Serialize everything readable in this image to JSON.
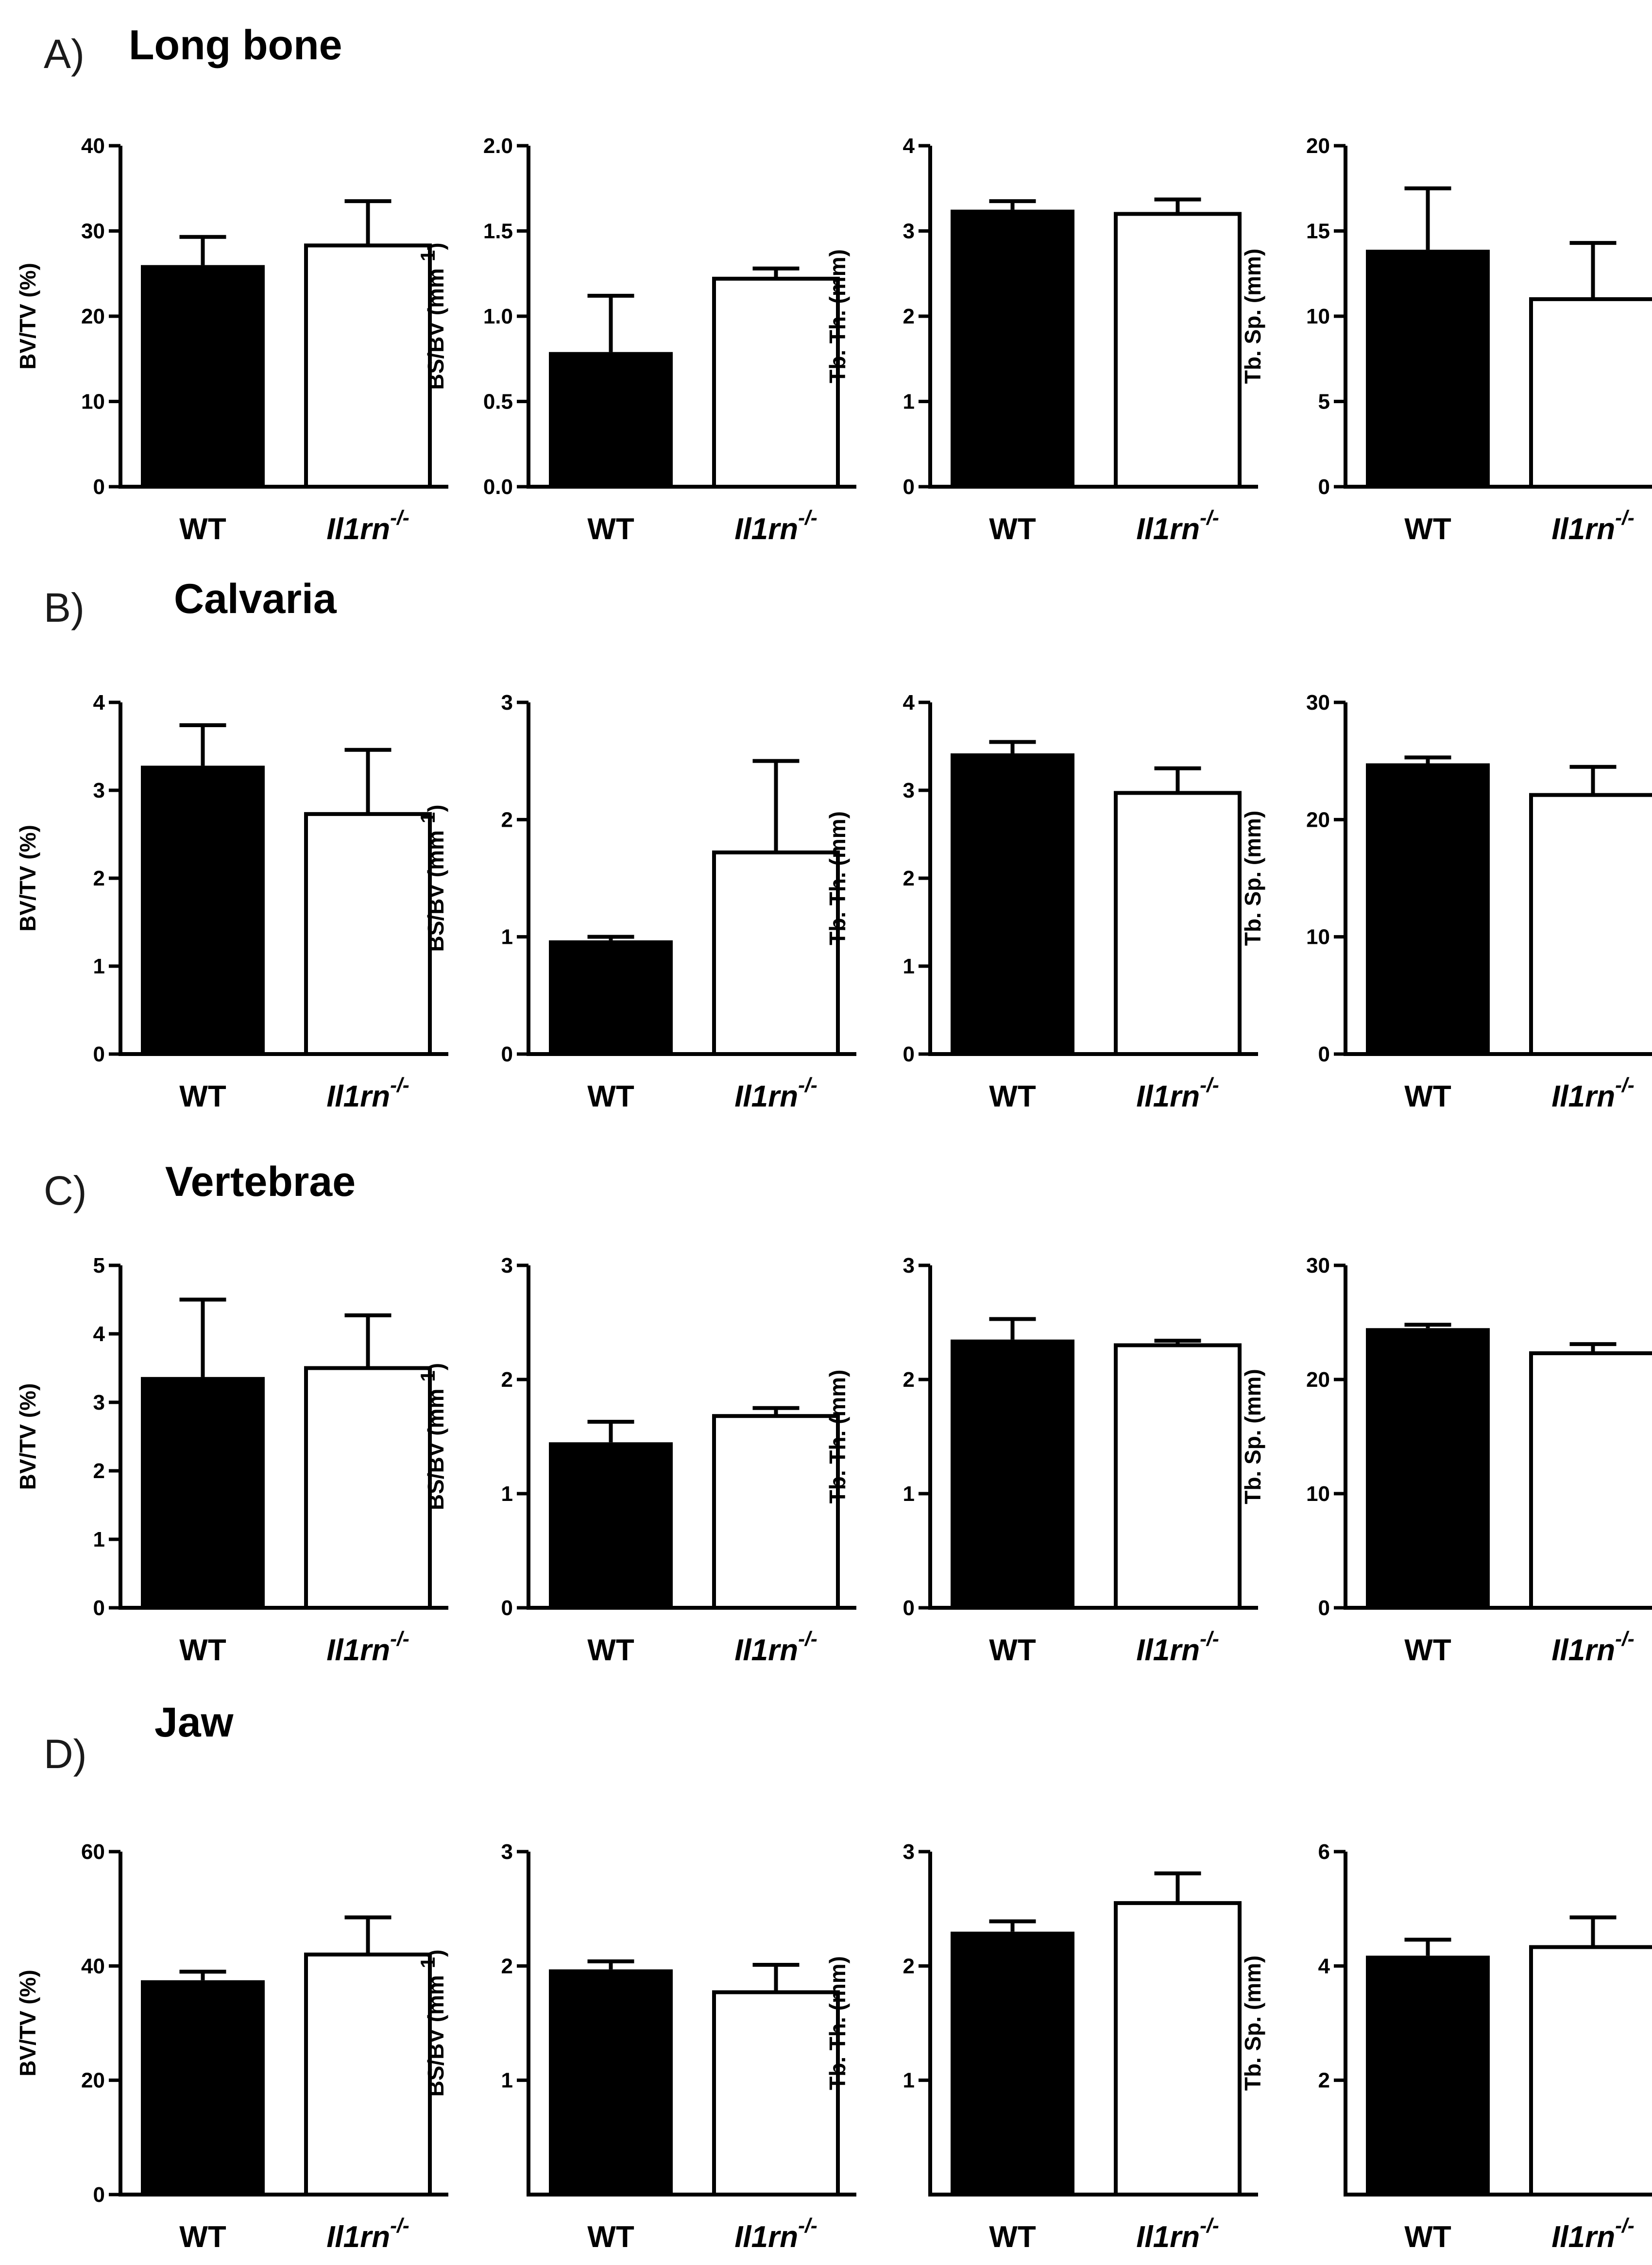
{
  "chart_data": [
    {
      "section": "A",
      "type": "bar",
      "ylabel": "BV/TV (%)",
      "ylabel_sup": "",
      "ylabel_suffix": "",
      "ylim": [
        0,
        40
      ],
      "yticks": [
        "0",
        "10",
        "20",
        "30",
        "40"
      ],
      "categories": [
        "WT",
        "Il1rn"
      ],
      "category_sup": [
        "",
        "-/-"
      ],
      "values": [
        26,
        28.3
      ],
      "errors": [
        3.3,
        5.2
      ]
    },
    {
      "section": "A",
      "type": "bar",
      "ylabel": "BS/BV (mm",
      "ylabel_sup": "-1",
      "ylabel_suffix": ")",
      "ylim": [
        0,
        2.0
      ],
      "yticks": [
        "0.0",
        "0.5",
        "1.0",
        "1.5",
        "2.0"
      ],
      "categories": [
        "WT",
        "Il1rn"
      ],
      "category_sup": [
        "",
        "-/-"
      ],
      "values": [
        0.79,
        1.22
      ],
      "errors": [
        0.33,
        0.06
      ]
    },
    {
      "section": "A",
      "type": "bar",
      "ylabel": "Tb. Th. (mm)",
      "ylabel_sup": "",
      "ylabel_suffix": "",
      "ylim": [
        0,
        4
      ],
      "yticks": [
        "0",
        "1",
        "2",
        "3",
        "4"
      ],
      "categories": [
        "WT",
        "Il1rn"
      ],
      "category_sup": [
        "",
        "-/-"
      ],
      "values": [
        3.25,
        3.2
      ],
      "errors": [
        0.1,
        0.17
      ]
    },
    {
      "section": "A",
      "type": "bar",
      "ylabel": "Tb. Sp. (mm)",
      "ylabel_sup": "",
      "ylabel_suffix": "",
      "ylim": [
        0,
        20
      ],
      "yticks": [
        "0",
        "5",
        "10",
        "15",
        "20"
      ],
      "categories": [
        "WT",
        "Il1rn"
      ],
      "category_sup": [
        "",
        "-/-"
      ],
      "values": [
        13.9,
        11
      ],
      "errors": [
        3.6,
        3.3
      ]
    },
    {
      "section": "B",
      "type": "bar",
      "ylabel": "BV/TV (%)",
      "ylabel_sup": "",
      "ylabel_suffix": "",
      "ylim": [
        0,
        4
      ],
      "yticks": [
        "0",
        "1",
        "2",
        "3",
        "4"
      ],
      "categories": [
        "WT",
        "Il1rn"
      ],
      "category_sup": [
        "",
        "-/-"
      ],
      "values": [
        3.28,
        2.73
      ],
      "errors": [
        0.46,
        0.73
      ]
    },
    {
      "section": "B",
      "type": "bar",
      "ylabel": "BS/BV (mm",
      "ylabel_sup": "-1",
      "ylabel_suffix": ")",
      "ylim": [
        0,
        3
      ],
      "yticks": [
        "0",
        "1",
        "2",
        "3"
      ],
      "categories": [
        "WT",
        "Il1rn"
      ],
      "category_sup": [
        "",
        "-/-"
      ],
      "values": [
        0.97,
        1.72
      ],
      "errors": [
        0.03,
        0.78
      ]
    },
    {
      "section": "B",
      "type": "bar",
      "ylabel": "Tb. Th. (mm)",
      "ylabel_sup": "",
      "ylabel_suffix": "",
      "ylim": [
        0,
        4
      ],
      "yticks": [
        "0",
        "1",
        "2",
        "3",
        "4"
      ],
      "categories": [
        "WT",
        "Il1rn"
      ],
      "category_sup": [
        "",
        "-/-"
      ],
      "values": [
        3.42,
        2.97
      ],
      "errors": [
        0.13,
        0.28
      ]
    },
    {
      "section": "B",
      "type": "bar",
      "ylabel": "Tb. Sp. (mm)",
      "ylabel_sup": "",
      "ylabel_suffix": "",
      "ylim": [
        0,
        30
      ],
      "yticks": [
        "0",
        "10",
        "20",
        "30"
      ],
      "categories": [
        "WT",
        "Il1rn"
      ],
      "category_sup": [
        "",
        "-/-"
      ],
      "values": [
        24.8,
        22.1
      ],
      "errors": [
        0.5,
        2.4
      ]
    },
    {
      "section": "C",
      "type": "bar",
      "ylabel": "BV/TV (%)",
      "ylabel_sup": "",
      "ylabel_suffix": "",
      "ylim": [
        0,
        5
      ],
      "yticks": [
        "0",
        "1",
        "2",
        "3",
        "4",
        "5"
      ],
      "categories": [
        "WT",
        "Il1rn"
      ],
      "category_sup": [
        "",
        "-/-"
      ],
      "values": [
        3.37,
        3.5
      ],
      "errors": [
        1.13,
        0.77
      ]
    },
    {
      "section": "C",
      "type": "bar",
      "ylabel": "BS/BV (mm",
      "ylabel_sup": "-1",
      "ylabel_suffix": ")",
      "ylim": [
        0,
        3
      ],
      "yticks": [
        "0",
        "1",
        "2",
        "3"
      ],
      "categories": [
        "WT",
        "Il1rn"
      ],
      "category_sup": [
        "",
        "-/-"
      ],
      "values": [
        1.45,
        1.68
      ],
      "errors": [
        0.18,
        0.07
      ]
    },
    {
      "section": "C",
      "type": "bar",
      "ylabel": "Tb. Th. (mm)",
      "ylabel_sup": "",
      "ylabel_suffix": "",
      "ylim": [
        0,
        3
      ],
      "yticks": [
        "0",
        "1",
        "2",
        "3"
      ],
      "categories": [
        "WT",
        "Il1rn"
      ],
      "category_sup": [
        "",
        "-/-"
      ],
      "values": [
        2.35,
        2.3
      ],
      "errors": [
        0.18,
        0.04
      ]
    },
    {
      "section": "C",
      "type": "bar",
      "ylabel": "Tb. Sp. (mm)",
      "ylabel_sup": "",
      "ylabel_suffix": "",
      "ylim": [
        0,
        30
      ],
      "yticks": [
        "0",
        "10",
        "20",
        "30"
      ],
      "categories": [
        "WT",
        "Il1rn"
      ],
      "category_sup": [
        "",
        "-/-"
      ],
      "values": [
        24.5,
        22.3
      ],
      "errors": [
        0.3,
        0.8
      ]
    },
    {
      "section": "D",
      "type": "bar",
      "ylabel": "BV/TV (%)",
      "ylabel_sup": "",
      "ylabel_suffix": "",
      "ylim": [
        0,
        60
      ],
      "yticks": [
        "0",
        "20",
        "40",
        "60"
      ],
      "categories": [
        "WT",
        "Il1rn"
      ],
      "category_sup": [
        "",
        "-/-"
      ],
      "values": [
        37.5,
        42
      ],
      "errors": [
        1.5,
        6.5
      ]
    },
    {
      "section": "D",
      "type": "bar",
      "ylabel": "BS/BV (mm",
      "ylabel_sup": "-1",
      "ylabel_suffix": ")",
      "ylim": [
        0,
        3
      ],
      "yticks": [
        "1",
        "2",
        "3"
      ],
      "categories": [
        "WT",
        "Il1rn"
      ],
      "category_sup": [
        "",
        "-/-"
      ],
      "values": [
        1.97,
        1.77
      ],
      "errors": [
        0.07,
        0.24
      ]
    },
    {
      "section": "D",
      "type": "bar",
      "ylabel": "Tb. Th. (mm)",
      "ylabel_sup": "",
      "ylabel_suffix": "",
      "ylim": [
        0,
        3
      ],
      "yticks": [
        "1",
        "2",
        "3"
      ],
      "categories": [
        "WT",
        "Il1rn"
      ],
      "category_sup": [
        "",
        "-/-"
      ],
      "values": [
        2.3,
        2.55
      ],
      "errors": [
        0.09,
        0.26
      ]
    },
    {
      "section": "D",
      "type": "bar",
      "ylabel": "Tb. Sp. (mm)",
      "ylabel_sup": "",
      "ylabel_suffix": "",
      "ylim": [
        0,
        6
      ],
      "yticks": [
        "2",
        "4",
        "6"
      ],
      "categories": [
        "WT",
        "Il1rn"
      ],
      "category_sup": [
        "",
        "-/-"
      ],
      "values": [
        4.18,
        4.33
      ],
      "errors": [
        0.28,
        0.52
      ]
    }
  ],
  "sections": [
    {
      "letter": "A)",
      "title": "Long bone"
    },
    {
      "letter": "B)",
      "title": "Calvaria"
    },
    {
      "letter": "C)",
      "title": "Vertebrae"
    },
    {
      "letter": "D)",
      "title": "Jaw"
    }
  ],
  "colors": {
    "wt_fill": "#000000",
    "ko_fill": "#ffffff",
    "stroke": "#000000"
  }
}
